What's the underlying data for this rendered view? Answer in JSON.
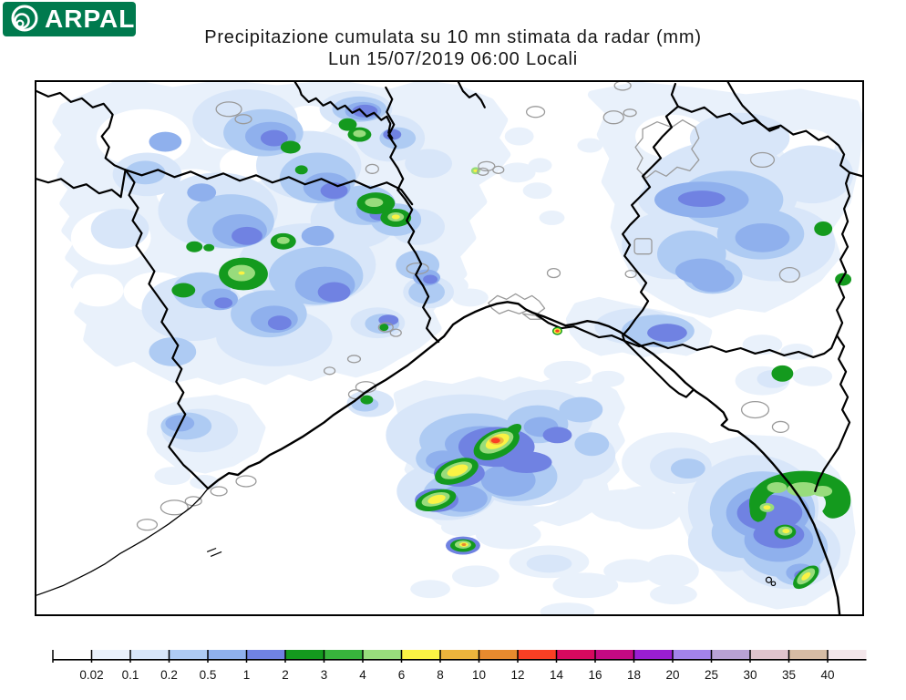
{
  "header": {
    "logo_text": "ARPAL",
    "title_line1": "Precipitazione cumulata su 10 mn stimata da radar (mm)",
    "title_line2": "Lun 15/07/2019 06:00 Locali"
  },
  "legend": {
    "tick_labels": [
      "0.02",
      "0.1",
      "0.2",
      "0.5",
      "1",
      "2",
      "3",
      "4",
      "6",
      "8",
      "10",
      "12",
      "14",
      "16",
      "18",
      "20",
      "25",
      "30",
      "35",
      "40"
    ],
    "segment_colors": [
      "#ffffff",
      "#e9f1fb",
      "#d8e6f9",
      "#aecbf3",
      "#8fb0ed",
      "#7082e2",
      "#149a1e",
      "#38b43c",
      "#98dc7c",
      "#faf344",
      "#edb53c",
      "#e78a2e",
      "#f93f24",
      "#d6095f",
      "#c30983",
      "#9a1ed2",
      "#a383eb",
      "#b9a2d4",
      "#dfc3cd",
      "#d6bca4",
      "#f3e6ea"
    ]
  },
  "map": {
    "frame_color": "#000000",
    "region_boundary_color": "#000000",
    "coastline_color": "#000000",
    "urban_outline_color": "#9a9a9a",
    "background": "#ffffff"
  },
  "logo_colors": {
    "background": "#007a4e",
    "mark": "#ffffff",
    "text": "#ffffff"
  }
}
